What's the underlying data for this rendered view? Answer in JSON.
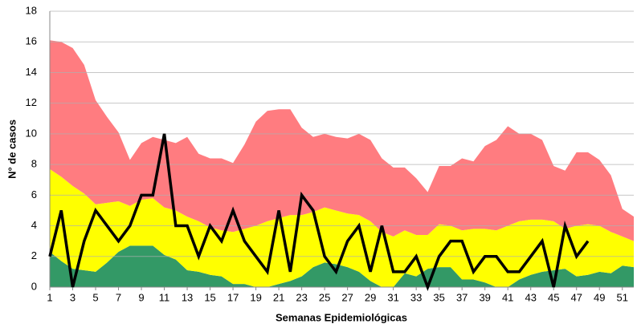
{
  "chart_data": {
    "type": "stacked_area_line",
    "y_label": "N° de casos",
    "x_label": "Semanas Epidemiológicas",
    "x": [
      1,
      2,
      3,
      4,
      5,
      6,
      7,
      8,
      9,
      10,
      11,
      12,
      13,
      14,
      15,
      16,
      17,
      18,
      19,
      20,
      21,
      22,
      23,
      24,
      25,
      26,
      27,
      28,
      29,
      30,
      31,
      32,
      33,
      34,
      35,
      36,
      37,
      38,
      39,
      40,
      41,
      42,
      43,
      44,
      45,
      46,
      47,
      48,
      49,
      50,
      51,
      52
    ],
    "xlim": [
      1,
      52
    ],
    "xticks": [
      1,
      3,
      5,
      7,
      9,
      11,
      13,
      15,
      17,
      19,
      21,
      23,
      25,
      27,
      29,
      31,
      33,
      35,
      37,
      39,
      41,
      43,
      45,
      47,
      49,
      51
    ],
    "ylim": [
      0,
      18
    ],
    "yticks": [
      0,
      2,
      4,
      6,
      8,
      10,
      12,
      14,
      16,
      18
    ],
    "grid": true,
    "areas": [
      {
        "color": "#339966",
        "values": [
          2.3,
          1.7,
          1.2,
          1.1,
          1.0,
          1.6,
          2.3,
          2.7,
          2.7,
          2.7,
          2.1,
          1.8,
          1.1,
          1.0,
          0.8,
          0.7,
          0.2,
          0.2,
          0.0,
          0.0,
          0.2,
          0.4,
          0.7,
          1.3,
          1.6,
          1.5,
          1.3,
          1.0,
          0.4,
          0.0,
          0.0,
          0.9,
          0.7,
          1.2,
          1.3,
          1.3,
          0.5,
          0.5,
          0.3,
          0.0,
          0.0,
          0.5,
          0.8,
          1.0,
          1.1,
          1.2,
          0.7,
          0.8,
          1.0,
          0.9,
          1.4,
          1.3
        ]
      },
      {
        "color": "#ffff00",
        "values": [
          5.4,
          5.5,
          5.4,
          5.0,
          4.4,
          3.9,
          3.3,
          2.6,
          3.0,
          3.1,
          3.1,
          3.2,
          3.5,
          3.3,
          3.1,
          3.0,
          3.4,
          3.6,
          4.0,
          4.3,
          4.3,
          4.3,
          4.0,
          3.6,
          3.6,
          3.5,
          3.5,
          3.7,
          3.9,
          3.6,
          3.3,
          2.8,
          2.7,
          2.2,
          2.8,
          2.7,
          3.2,
          3.3,
          3.5,
          3.7,
          4.0,
          3.8,
          3.6,
          3.4,
          3.2,
          2.6,
          3.3,
          3.3,
          3.0,
          2.7,
          1.9,
          1.7
        ]
      },
      {
        "color": "#ff7c80",
        "values": [
          8.4,
          8.8,
          9.0,
          8.4,
          6.8,
          5.6,
          4.5,
          3.0,
          3.7,
          4.0,
          4.4,
          4.4,
          5.2,
          4.4,
          4.5,
          4.7,
          4.5,
          5.5,
          6.8,
          7.2,
          7.1,
          6.9,
          5.7,
          4.9,
          4.8,
          4.8,
          4.9,
          5.3,
          5.3,
          4.8,
          4.5,
          4.1,
          3.7,
          2.8,
          3.8,
          3.9,
          4.7,
          4.4,
          5.4,
          5.9,
          6.5,
          5.7,
          5.6,
          5.2,
          3.6,
          3.8,
          4.8,
          4.7,
          4.3,
          3.7,
          1.8,
          1.6
        ]
      }
    ],
    "line": {
      "color": "#000000",
      "values": [
        2,
        5,
        0,
        3,
        5,
        4,
        3,
        4,
        6,
        6,
        10,
        4,
        4,
        2,
        4,
        3,
        5,
        3,
        2,
        1,
        5,
        1,
        6,
        5,
        2,
        1,
        3,
        4,
        1,
        4,
        1,
        1,
        2,
        0,
        2,
        3,
        3,
        1,
        2,
        2,
        1,
        1,
        2,
        3,
        0,
        4,
        2,
        3,
        null,
        null,
        null,
        null
      ]
    }
  }
}
